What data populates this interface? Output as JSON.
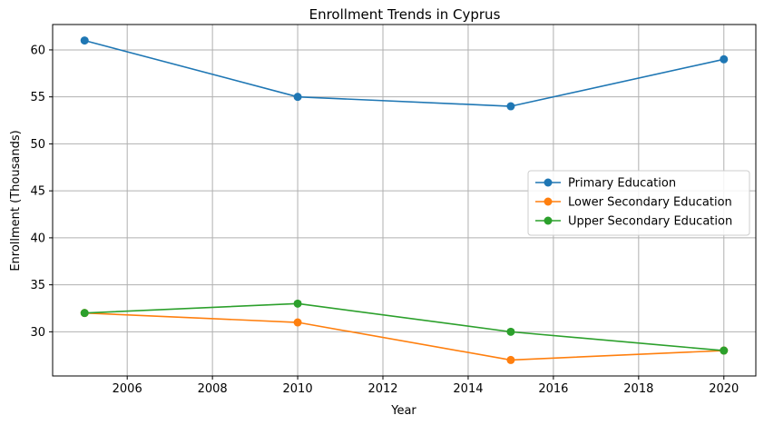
{
  "chart_data": {
    "type": "line",
    "title": "Enrollment Trends in Cyprus",
    "xlabel": "Year",
    "ylabel": "Enrollment (Thousands)",
    "x": [
      2005,
      2010,
      2015,
      2020
    ],
    "xlim": [
      2004.25,
      2020.75
    ],
    "ylim": [
      25.3,
      62.7
    ],
    "xticks": [
      2006,
      2008,
      2010,
      2012,
      2014,
      2016,
      2018,
      2020
    ],
    "yticks": [
      30,
      35,
      40,
      45,
      50,
      55,
      60
    ],
    "grid": true,
    "legend_position": "center-right",
    "series": [
      {
        "name": "Primary Education",
        "values": [
          61,
          55,
          54,
          59
        ],
        "color": "#1f77b4",
        "marker": "circle"
      },
      {
        "name": "Lower Secondary Education",
        "values": [
          32,
          31,
          27,
          28
        ],
        "color": "#ff7f0e",
        "marker": "circle"
      },
      {
        "name": "Upper Secondary Education",
        "values": [
          32,
          33,
          30,
          28
        ],
        "color": "#2ca02c",
        "marker": "circle"
      }
    ]
  }
}
